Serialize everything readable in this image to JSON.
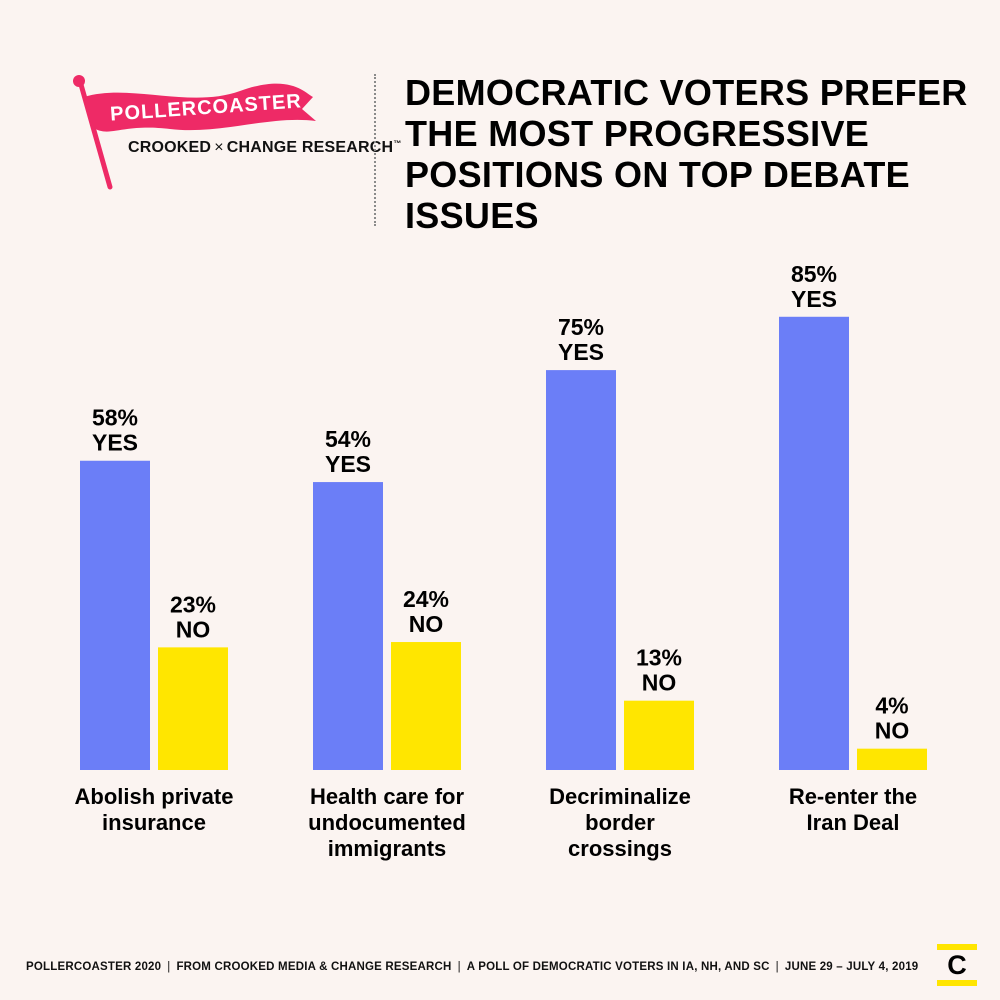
{
  "logo": {
    "name": "POLLERCOASTER",
    "partner_left": "CROOKED",
    "partner_x": "×",
    "partner_right": "CHANGE RESEARCH",
    "partner_tm": "™",
    "flag_color": "#ee2a66"
  },
  "title": "DEMOCRATIC VOTERS PREFER THE MOST PROGRESSIVE POSITIONS ON TOP DEBATE ISSUES",
  "colors": {
    "yes": "#6b7ef7",
    "no": "#ffe600",
    "background": "#fbf4f1"
  },
  "chart_data": {
    "type": "bar",
    "title": "DEMOCRATIC VOTERS PREFER THE MOST PROGRESSIVE POSITIONS ON TOP DEBATE ISSUES",
    "categories": [
      [
        "Abolish private",
        "insurance"
      ],
      [
        "Health care for",
        "undocumented",
        "immigrants"
      ],
      [
        "Decriminalize",
        "border",
        "crossings"
      ],
      [
        "Re-enter the",
        "Iran Deal"
      ]
    ],
    "series": [
      {
        "name": "YES",
        "values": [
          58,
          54,
          75,
          85
        ],
        "labels": [
          "58%",
          "54%",
          "75%",
          "85%"
        ]
      },
      {
        "name": "NO",
        "values": [
          23,
          24,
          13,
          4
        ],
        "labels": [
          "23%",
          "24%",
          "13%",
          "4%"
        ]
      }
    ],
    "xlabel": "",
    "ylabel": "",
    "ylim": [
      0,
      100
    ],
    "grid": false,
    "legend": "none"
  },
  "footer": {
    "items": [
      "POLLERCOASTER 2020",
      "FROM CROOKED MEDIA & CHANGE RESEARCH",
      "A POLL OF DEMOCRATIC VOTERS IN IA, NH, AND SC",
      "JUNE 29 – JULY 4, 2019"
    ],
    "separator": "|"
  },
  "badge": {
    "letter": "C"
  }
}
